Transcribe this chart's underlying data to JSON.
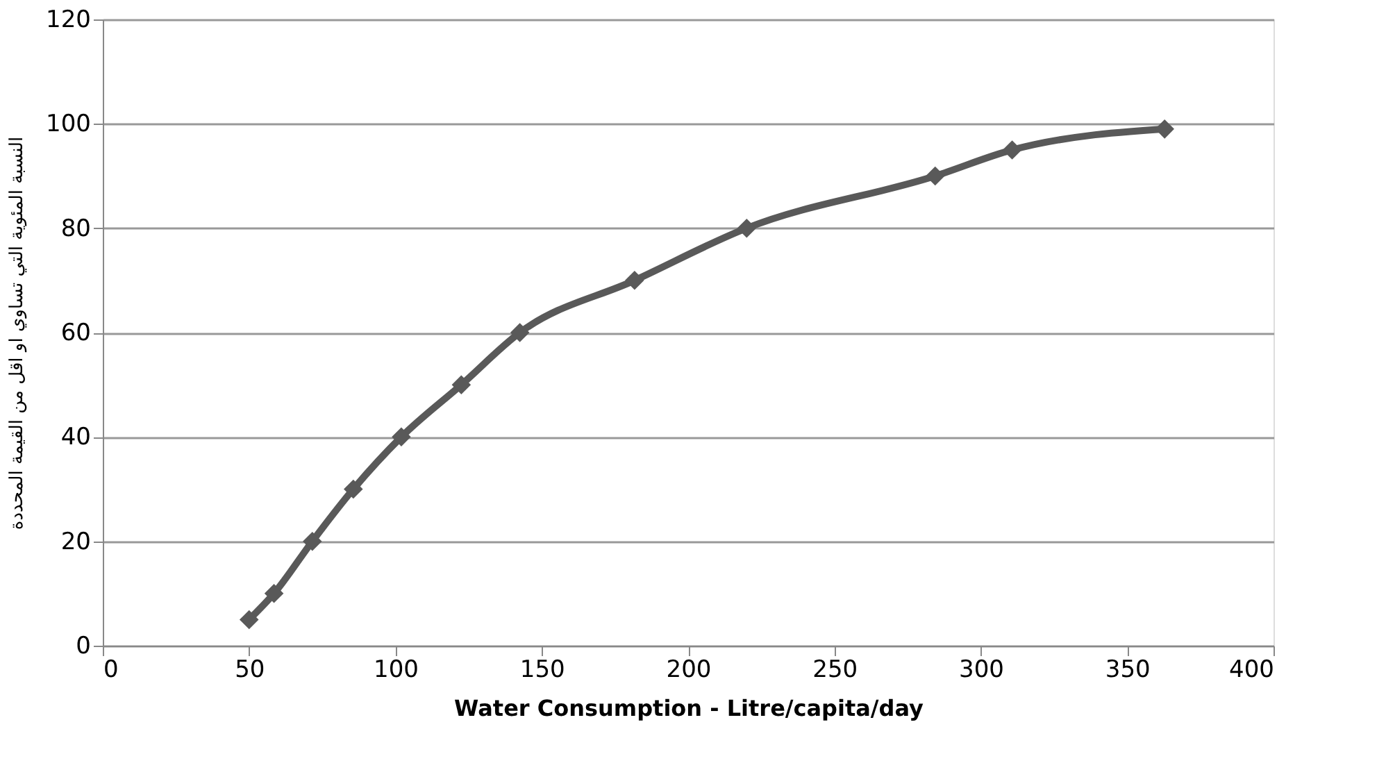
{
  "chart_data": {
    "type": "line",
    "xlabel": "Water Consumption - Litre/capita/day",
    "ylabel": "النسبة المئوية التي تساوي او اقل من القيمة المحددة",
    "x": [
      50,
      58.5,
      71.6,
      85.6,
      102,
      122.5,
      142.5,
      181.7,
      220,
      284.4,
      310.7,
      362.8
    ],
    "series": [
      {
        "color": "#595959",
        "values": [
          5,
          10,
          20,
          30,
          40,
          50,
          60,
          70,
          80,
          90,
          95,
          99
        ]
      }
    ],
    "xlim": [
      0,
      400
    ],
    "xticks": [
      0,
      50,
      100,
      150,
      200,
      250,
      300,
      350,
      400
    ],
    "ylim": [
      0,
      120
    ],
    "yticks": [
      0,
      20,
      40,
      60,
      80,
      100,
      120
    ],
    "grid": "y",
    "marker": "diamond",
    "line_style": "solid"
  }
}
